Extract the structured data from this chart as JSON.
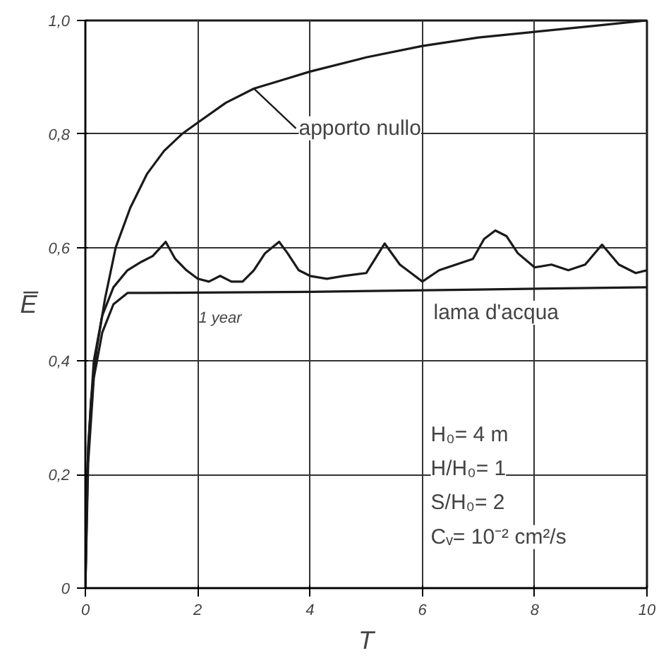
{
  "chart_data": {
    "type": "line",
    "xlabel": "T",
    "ylabel": "E̅",
    "xlim": [
      0,
      10
    ],
    "ylim": [
      0,
      1
    ],
    "xticks": [
      0,
      2,
      4,
      6,
      8,
      {
        "value": 10,
        "label": "10"
      }
    ],
    "yticks": [
      0,
      {
        "value": 0.2,
        "label": "0,2"
      },
      {
        "value": 0.4,
        "label": "0,4"
      },
      {
        "value": 0.6,
        "label": "0,6"
      },
      {
        "value": 0.8,
        "label": "0,8"
      },
      {
        "value": 1,
        "label": "1,0"
      }
    ],
    "grid": true,
    "legend": false,
    "line_style": "solid",
    "marker": "none",
    "series": [
      {
        "name": "apporto nullo",
        "color": "#1a1a1a",
        "x": [
          0,
          0.03,
          0.1,
          0.2,
          0.35,
          0.54,
          0.8,
          1.1,
          1.4,
          1.72,
          2,
          2.5,
          3,
          3.5,
          4,
          5,
          6,
          7,
          8,
          9,
          10
        ],
        "values": [
          0,
          0.2,
          0.33,
          0.42,
          0.51,
          0.6,
          0.67,
          0.73,
          0.77,
          0.8,
          0.82,
          0.855,
          0.88,
          0.895,
          0.91,
          0.935,
          0.955,
          0.97,
          0.98,
          0.99,
          1.0
        ]
      },
      {
        "color": "#1a1a1a",
        "x": [
          0,
          0.05,
          0.15,
          0.3,
          0.5,
          0.75,
          1,
          1.2,
          1.43,
          1.6,
          1.8,
          2,
          2.2,
          2.4,
          2.6,
          2.8,
          3,
          3.2,
          3.45,
          3.6,
          3.8,
          4,
          4.3,
          4.6,
          5,
          5.33,
          5.6,
          6,
          6.3,
          6.6,
          6.9,
          7.1,
          7.3,
          7.5,
          7.7,
          8,
          8.3,
          8.6,
          8.9,
          9.2,
          9.5,
          9.8,
          10
        ],
        "values": [
          0,
          0.25,
          0.4,
          0.48,
          0.53,
          0.56,
          0.575,
          0.585,
          0.61,
          0.58,
          0.56,
          0.545,
          0.54,
          0.55,
          0.54,
          0.54,
          0.56,
          0.59,
          0.61,
          0.59,
          0.56,
          0.55,
          0.545,
          0.55,
          0.555,
          0.607,
          0.57,
          0.54,
          0.56,
          0.57,
          0.58,
          0.615,
          0.63,
          0.62,
          0.59,
          0.565,
          0.57,
          0.56,
          0.57,
          0.605,
          0.57,
          0.555,
          0.56
        ]
      },
      {
        "name": "lama d'acqua",
        "color": "#1a1a1a",
        "x": [
          0,
          0.05,
          0.15,
          0.3,
          0.5,
          0.75,
          1,
          4,
          7,
          10
        ],
        "values": [
          0,
          0.22,
          0.37,
          0.45,
          0.5,
          0.52,
          0.52,
          0.522,
          0.526,
          0.53
        ]
      }
    ],
    "annotations": [
      "1 year",
      "H₀= 4 m",
      "H/H₀= 1",
      "S/H₀= 2",
      "Cᵥ= 10⁻² cm²/s"
    ]
  }
}
